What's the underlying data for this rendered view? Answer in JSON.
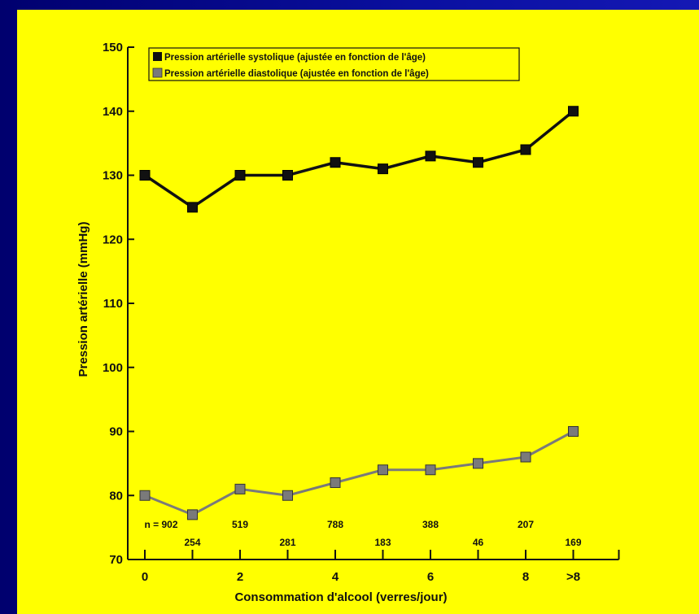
{
  "colors": {
    "background": "#0a0a8c",
    "panel": "#ffff00",
    "systolic": "#111111",
    "diastolic": "#7a7a7a"
  },
  "chart_data": {
    "type": "line",
    "xlabel": "Consommation d'alcool (verres/jour)",
    "ylabel": "Pression artérielle (mmHg)",
    "ylim": [
      70,
      150
    ],
    "yticks": [
      70,
      80,
      90,
      100,
      110,
      120,
      130,
      140,
      150
    ],
    "x": [
      0,
      1,
      2,
      3,
      4,
      5,
      6,
      7,
      8,
      9
    ],
    "xtick_labels": [
      {
        "x": 0,
        "label": "0"
      },
      {
        "x": 2,
        "label": "2"
      },
      {
        "x": 4,
        "label": "4"
      },
      {
        "x": 6,
        "label": "6"
      },
      {
        "x": 8,
        "label": "8"
      },
      {
        "x": 9,
        "label": ">8"
      }
    ],
    "series": [
      {
        "name": "Pression artérielle systolique (ajustée en fonction de l'âge)",
        "marker": "square",
        "values": [
          130,
          125,
          130,
          130,
          132,
          131,
          133,
          132,
          134,
          140
        ]
      },
      {
        "name": "Pression artérielle diastolique (ajustée en fonction de l'âge)",
        "marker": "square",
        "values": [
          80,
          77,
          81,
          80,
          82,
          84,
          84,
          85,
          86,
          90
        ]
      }
    ],
    "n_labels": [
      "n = 902",
      "254",
      "519",
      "281",
      "788",
      "183",
      "388",
      "46",
      "207",
      "169"
    ],
    "legend_position": "top-left",
    "grid": false
  }
}
